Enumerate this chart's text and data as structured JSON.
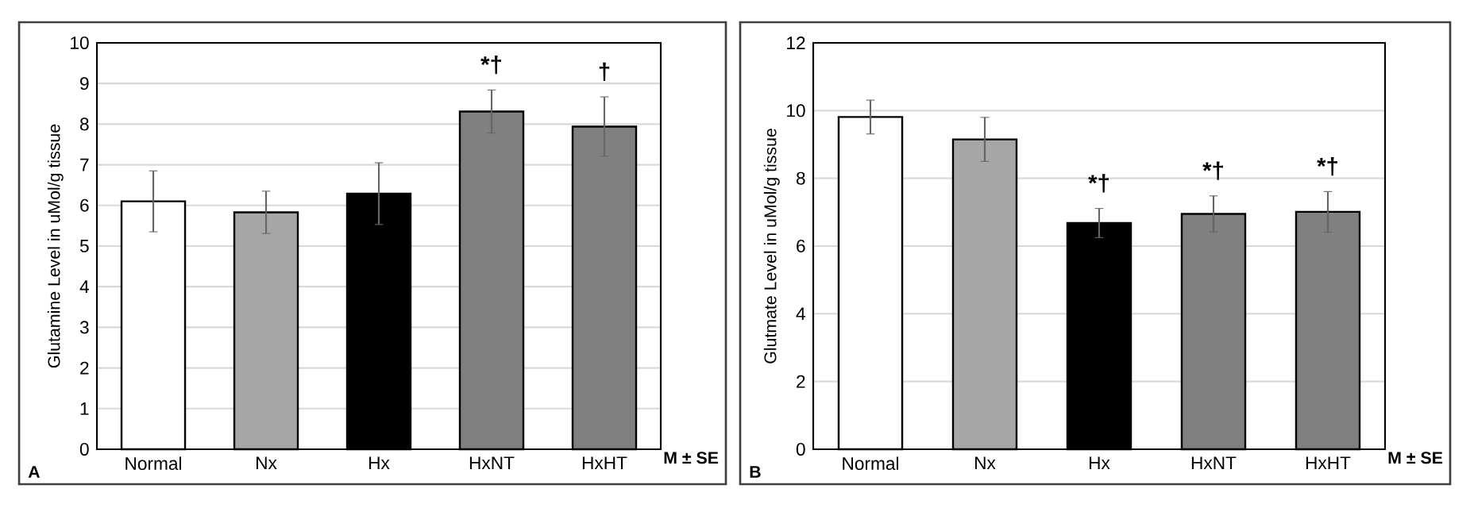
{
  "chart_data": [
    {
      "type": "bar",
      "ylabel": "Glutamine Level in uMol/g tissue",
      "categories": [
        "Normal",
        "Nx",
        "Hx",
        "HxNT",
        "HxHT"
      ],
      "values": [
        6.1,
        5.83,
        6.29,
        8.31,
        7.94
      ],
      "errors": [
        0.75,
        0.52,
        0.76,
        0.53,
        0.73
      ],
      "colors": [
        "#ffffff",
        "#a6a6a6",
        "#000000",
        "#808080",
        "#808080"
      ],
      "ylim": [
        0,
        10
      ],
      "yticks": [
        0,
        1,
        2,
        3,
        4,
        5,
        6,
        7,
        8,
        9,
        10
      ],
      "grid": "y",
      "annotations": [
        "M ± SE",
        "A",
        "*†",
        "†"
      ]
    },
    {
      "type": "bar",
      "ylabel": "Glutmate Level in uMol/g tissue",
      "categories": [
        "Normal",
        "Nx",
        "Hx",
        "HxNT",
        "HxHT"
      ],
      "values": [
        9.81,
        9.15,
        6.68,
        6.95,
        7.01
      ],
      "errors": [
        0.5,
        0.65,
        0.43,
        0.53,
        0.6
      ],
      "colors": [
        "#ffffff",
        "#a6a6a6",
        "#000000",
        "#808080",
        "#808080"
      ],
      "ylim": [
        0,
        12
      ],
      "yticks": [
        0,
        2,
        4,
        6,
        8,
        10,
        12
      ],
      "grid": "y",
      "annotations": [
        "M ± SE",
        "B",
        "*†",
        "*†",
        "*†"
      ]
    }
  ]
}
